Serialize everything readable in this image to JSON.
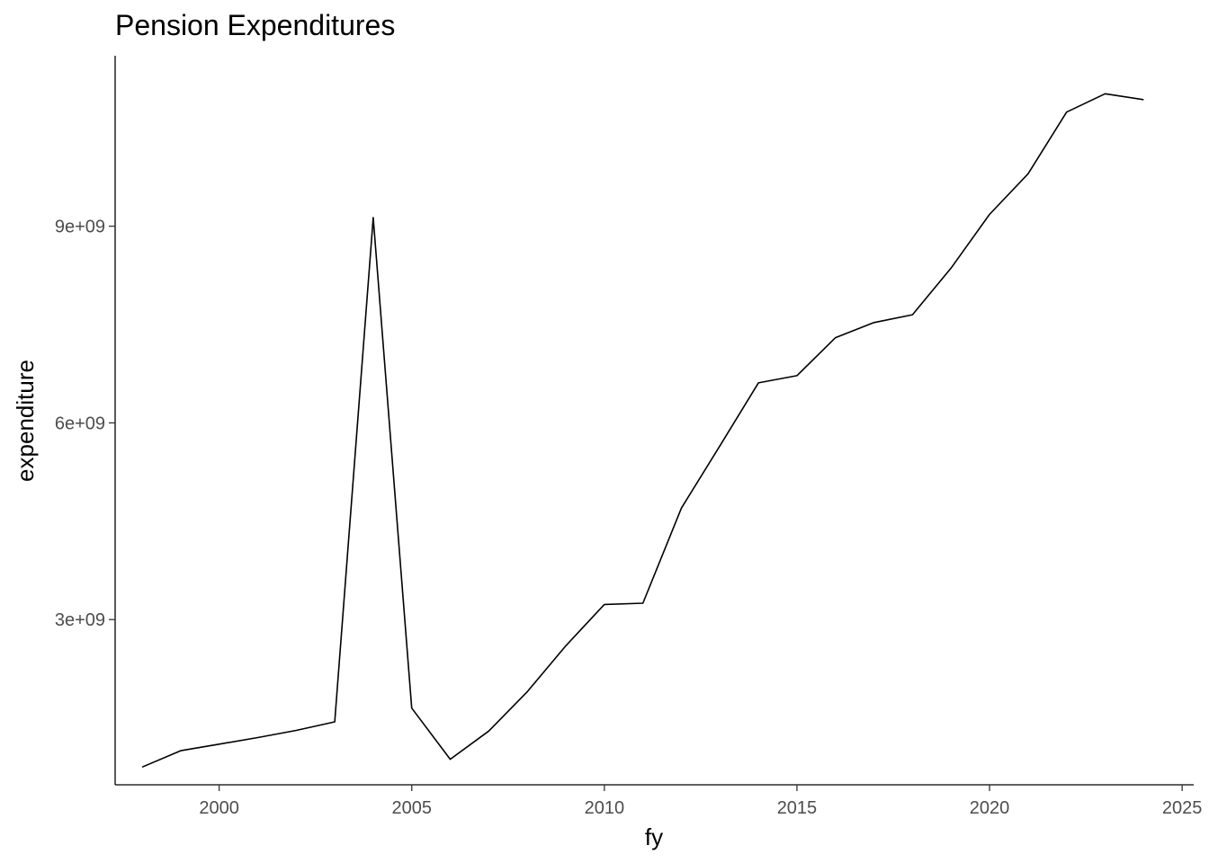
{
  "chart_data": {
    "type": "line",
    "title": "Pension Expenditures",
    "xlabel": "fy",
    "ylabel": "expenditure",
    "xlim": [
      1997.3,
      2025.3
    ],
    "ylim": [
      480000000,
      11600000000
    ],
    "xticks": [
      2000,
      2005,
      2010,
      2015,
      2020,
      2025
    ],
    "xtick_labels": [
      "2000",
      "2005",
      "2010",
      "2015",
      "2020",
      "2025"
    ],
    "yticks": [
      3000000000,
      6000000000,
      9000000000
    ],
    "ytick_labels": [
      "3e+09",
      "6e+09",
      "9e+09"
    ],
    "grid": false,
    "line_color": "#000000",
    "series": [
      {
        "x": [
          1998,
          1999,
          2000,
          2001,
          2002,
          2003,
          2004,
          2005,
          2006,
          2007,
          2008,
          2009,
          2010,
          2011,
          2012,
          2013,
          2014,
          2015,
          2016,
          2017,
          2018,
          2019,
          2020,
          2021,
          2022,
          2023,
          2024
        ],
        "values": [
          750000000,
          1000000000,
          1100000000,
          1200000000,
          1310000000,
          1440000000,
          9130000000,
          1650000000,
          870000000,
          1300000000,
          1900000000,
          2600000000,
          3230000000,
          3250000000,
          4700000000,
          5650000000,
          6610000000,
          6720000000,
          7300000000,
          7530000000,
          7650000000,
          8360000000,
          9180000000,
          9800000000,
          10740000000,
          11020000000,
          10930000000
        ]
      }
    ]
  }
}
